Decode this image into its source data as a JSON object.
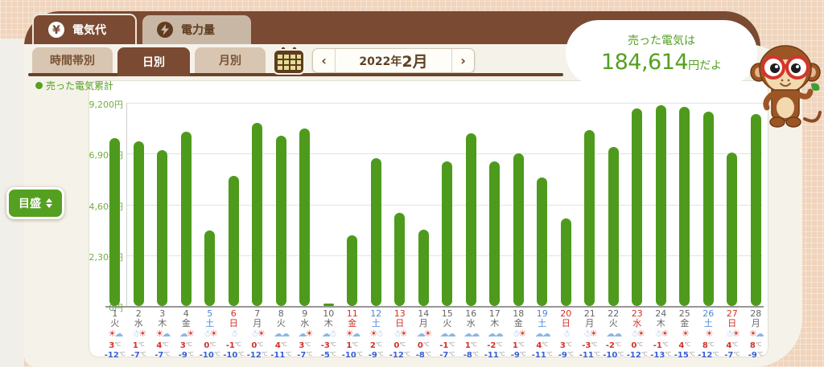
{
  "header": {
    "tabs": [
      {
        "label": "電気代",
        "icon": "yen-icon",
        "active": true
      },
      {
        "label": "電力量",
        "icon": "bolt-icon",
        "active": false
      }
    ]
  },
  "toolbar": {
    "subtabs": [
      {
        "label": "時間帯別",
        "active": false
      },
      {
        "label": "日別",
        "active": true
      },
      {
        "label": "月別",
        "active": false
      }
    ],
    "prev": "‹",
    "next": "›",
    "period_year": "2022年",
    "period_month": "2月"
  },
  "bubble": {
    "line1": "売った電気は",
    "amount": "184,614",
    "suffix": "円だよ"
  },
  "scale_button_label": "目盛",
  "colors": {
    "accent_brown": "#7a4a32",
    "panel": "#f5f2ea",
    "green": "#55a021",
    "bar_green": "#4e9a1d",
    "sun_red": "#d63b2f",
    "cloud_blue": "#8ab6e8",
    "saturday_blue": "#4a86d8",
    "sunday_red": "#d23126"
  },
  "chart_data": {
    "type": "bar",
    "legend": "売った電気累計",
    "unit": "円",
    "ylim": [
      0,
      9200
    ],
    "grid": true,
    "yticks": [
      {
        "value": 9200,
        "label": "9,200円"
      },
      {
        "value": 6900,
        "label": "6,900円"
      },
      {
        "value": 4600,
        "label": "4,600円"
      },
      {
        "value": 2300,
        "label": "2,300円"
      },
      {
        "value": 0,
        "label": "0円"
      }
    ],
    "days": [
      {
        "day": 1,
        "weekday": "火",
        "daytype": "weekday",
        "value": 7600,
        "weather": [
          "sun",
          "cloud"
        ],
        "high": 3,
        "low": -12
      },
      {
        "day": 2,
        "weekday": "水",
        "daytype": "weekday",
        "value": 7450,
        "weather": [
          "snow",
          "sun"
        ],
        "high": 1,
        "low": -7
      },
      {
        "day": 3,
        "weekday": "木",
        "daytype": "weekday",
        "value": 7050,
        "weather": [
          "sun",
          "cloud"
        ],
        "high": 4,
        "low": -7
      },
      {
        "day": 4,
        "weekday": "金",
        "daytype": "weekday",
        "value": 7900,
        "weather": [
          "cloud",
          "sun"
        ],
        "high": 3,
        "low": -9
      },
      {
        "day": 5,
        "weekday": "土",
        "daytype": "sat",
        "value": 3400,
        "weather": [
          "snow",
          "sun"
        ],
        "high": 0,
        "low": -10
      },
      {
        "day": 6,
        "weekday": "日",
        "daytype": "sun",
        "value": 5900,
        "weather": [
          "snow"
        ],
        "high": -1,
        "low": -10
      },
      {
        "day": 7,
        "weekday": "月",
        "daytype": "weekday",
        "value": 8300,
        "weather": [
          "snow",
          "sun"
        ],
        "high": 0,
        "low": -12
      },
      {
        "day": 8,
        "weekday": "火",
        "daytype": "weekday",
        "value": 7700,
        "weather": [
          "cloud",
          "cloud"
        ],
        "high": 4,
        "low": -11
      },
      {
        "day": 9,
        "weekday": "水",
        "daytype": "weekday",
        "value": 8050,
        "weather": [
          "cloud",
          "sun"
        ],
        "high": 3,
        "low": -7
      },
      {
        "day": 10,
        "weekday": "木",
        "daytype": "weekday",
        "value": 50,
        "weather": [
          "cloud",
          "snow"
        ],
        "high": -3,
        "low": -5
      },
      {
        "day": 11,
        "weekday": "金",
        "daytype": "sun",
        "value": 3200,
        "weather": [
          "sun",
          "cloud"
        ],
        "high": 1,
        "low": -10
      },
      {
        "day": 12,
        "weekday": "土",
        "daytype": "sat",
        "value": 6700,
        "weather": [
          "sun",
          "snow"
        ],
        "high": 2,
        "low": -9
      },
      {
        "day": 13,
        "weekday": "日",
        "daytype": "sun",
        "value": 4200,
        "weather": [
          "snow",
          "sun"
        ],
        "high": 0,
        "low": -12
      },
      {
        "day": 14,
        "weekday": "月",
        "daytype": "weekday",
        "value": 3450,
        "weather": [
          "cloud",
          "sun"
        ],
        "high": 0,
        "low": -8
      },
      {
        "day": 15,
        "weekday": "火",
        "daytype": "weekday",
        "value": 6550,
        "weather": [
          "cloud",
          "cloud"
        ],
        "high": -1,
        "low": -7
      },
      {
        "day": 16,
        "weekday": "水",
        "daytype": "weekday",
        "value": 7800,
        "weather": [
          "cloud",
          "cloud"
        ],
        "high": 1,
        "low": -8
      },
      {
        "day": 17,
        "weekday": "木",
        "daytype": "weekday",
        "value": 6550,
        "weather": [
          "cloud",
          "cloud"
        ],
        "high": -2,
        "low": -11
      },
      {
        "day": 18,
        "weekday": "金",
        "daytype": "weekday",
        "value": 6900,
        "weather": [
          "snow",
          "sun"
        ],
        "high": 1,
        "low": -9
      },
      {
        "day": 19,
        "weekday": "土",
        "daytype": "sat",
        "value": 5800,
        "weather": [
          "cloud",
          "cloud"
        ],
        "high": 4,
        "low": -11
      },
      {
        "day": 20,
        "weekday": "日",
        "daytype": "sun",
        "value": 3950,
        "weather": [
          "snow"
        ],
        "high": 3,
        "low": -9
      },
      {
        "day": 21,
        "weekday": "月",
        "daytype": "weekday",
        "value": 7950,
        "weather": [
          "snow",
          "sun"
        ],
        "high": -3,
        "low": -11
      },
      {
        "day": 22,
        "weekday": "火",
        "daytype": "weekday",
        "value": 7200,
        "weather": [
          "cloud",
          "cloud"
        ],
        "high": -2,
        "low": -10
      },
      {
        "day": 23,
        "weekday": "水",
        "daytype": "sun",
        "value": 8950,
        "weather": [
          "snow",
          "sun"
        ],
        "high": 0,
        "low": -12
      },
      {
        "day": 24,
        "weekday": "木",
        "daytype": "weekday",
        "value": 9100,
        "weather": [
          "snow",
          "sun"
        ],
        "high": -1,
        "low": -13
      },
      {
        "day": 25,
        "weekday": "金",
        "daytype": "weekday",
        "value": 9000,
        "weather": [
          "sun"
        ],
        "high": 4,
        "low": -15
      },
      {
        "day": 26,
        "weekday": "土",
        "daytype": "sat",
        "value": 8800,
        "weather": [
          "sun"
        ],
        "high": 8,
        "low": -12
      },
      {
        "day": 27,
        "weekday": "日",
        "daytype": "sun",
        "value": 6950,
        "weather": [
          "snow",
          "sun"
        ],
        "high": 4,
        "low": -7
      },
      {
        "day": 28,
        "weekday": "月",
        "daytype": "weekday",
        "value": 8700,
        "weather": [
          "sun",
          "cloud"
        ],
        "high": 8,
        "low": -9
      }
    ]
  }
}
